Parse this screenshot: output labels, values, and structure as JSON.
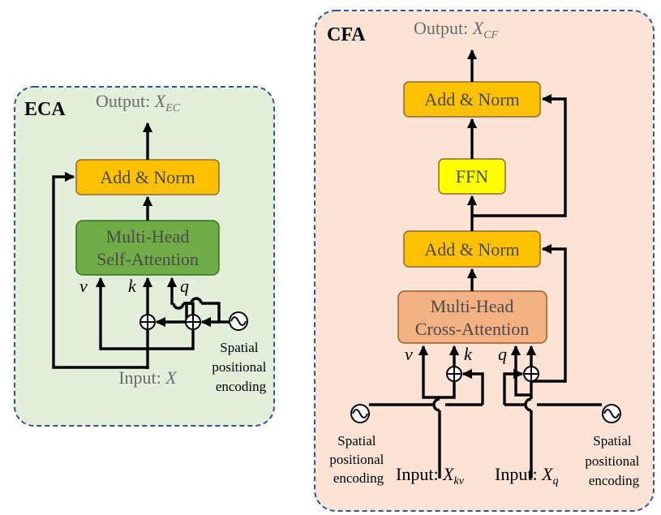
{
  "eca": {
    "title": "ECA",
    "output_prefix": "Output: ",
    "output_var": "X",
    "output_sub": "EC",
    "add_norm": "Add & Norm",
    "attention_line1": "Multi-Head",
    "attention_line2": "Self-Attention",
    "v": "v",
    "k": "k",
    "q": "q",
    "spe_line1": "Spatial",
    "spe_line2": "positional",
    "spe_line3": "encoding",
    "input_prefix": "Input: ",
    "input_var": "X",
    "colors": {
      "panel_fill": "#e2efda",
      "attention_fill": "#70ad47"
    }
  },
  "cfa": {
    "title": "CFA",
    "output_prefix": "Output: ",
    "output_var": "X",
    "output_sub": "CF",
    "add_norm_top": "Add & Norm",
    "ffn": "FFN",
    "add_norm_mid": "Add & Norm",
    "attention_line1": "Multi-Head",
    "attention_line2": "Cross-Attention",
    "v": "v",
    "k": "k",
    "q": "q",
    "spe_left_line1": "Spatial",
    "spe_left_line2": "positional",
    "spe_left_line3": "encoding",
    "spe_right_line1": "Spatial",
    "spe_right_line2": "positional",
    "spe_right_line3": "encoding",
    "input_kv_prefix": "Input: ",
    "input_kv_var": "X",
    "input_kv_sub": "kv",
    "input_q_prefix": "Input: ",
    "input_q_var": "X",
    "input_q_sub": "q",
    "colors": {
      "panel_fill": "#fbe4d6",
      "attention_fill": "#f4b183"
    }
  },
  "colors": {
    "panel_border": "#2f5597",
    "add_norm_fill": "#ffc000",
    "ffn_fill": "#ffff00",
    "box_stroke": "#8c6a2a"
  }
}
